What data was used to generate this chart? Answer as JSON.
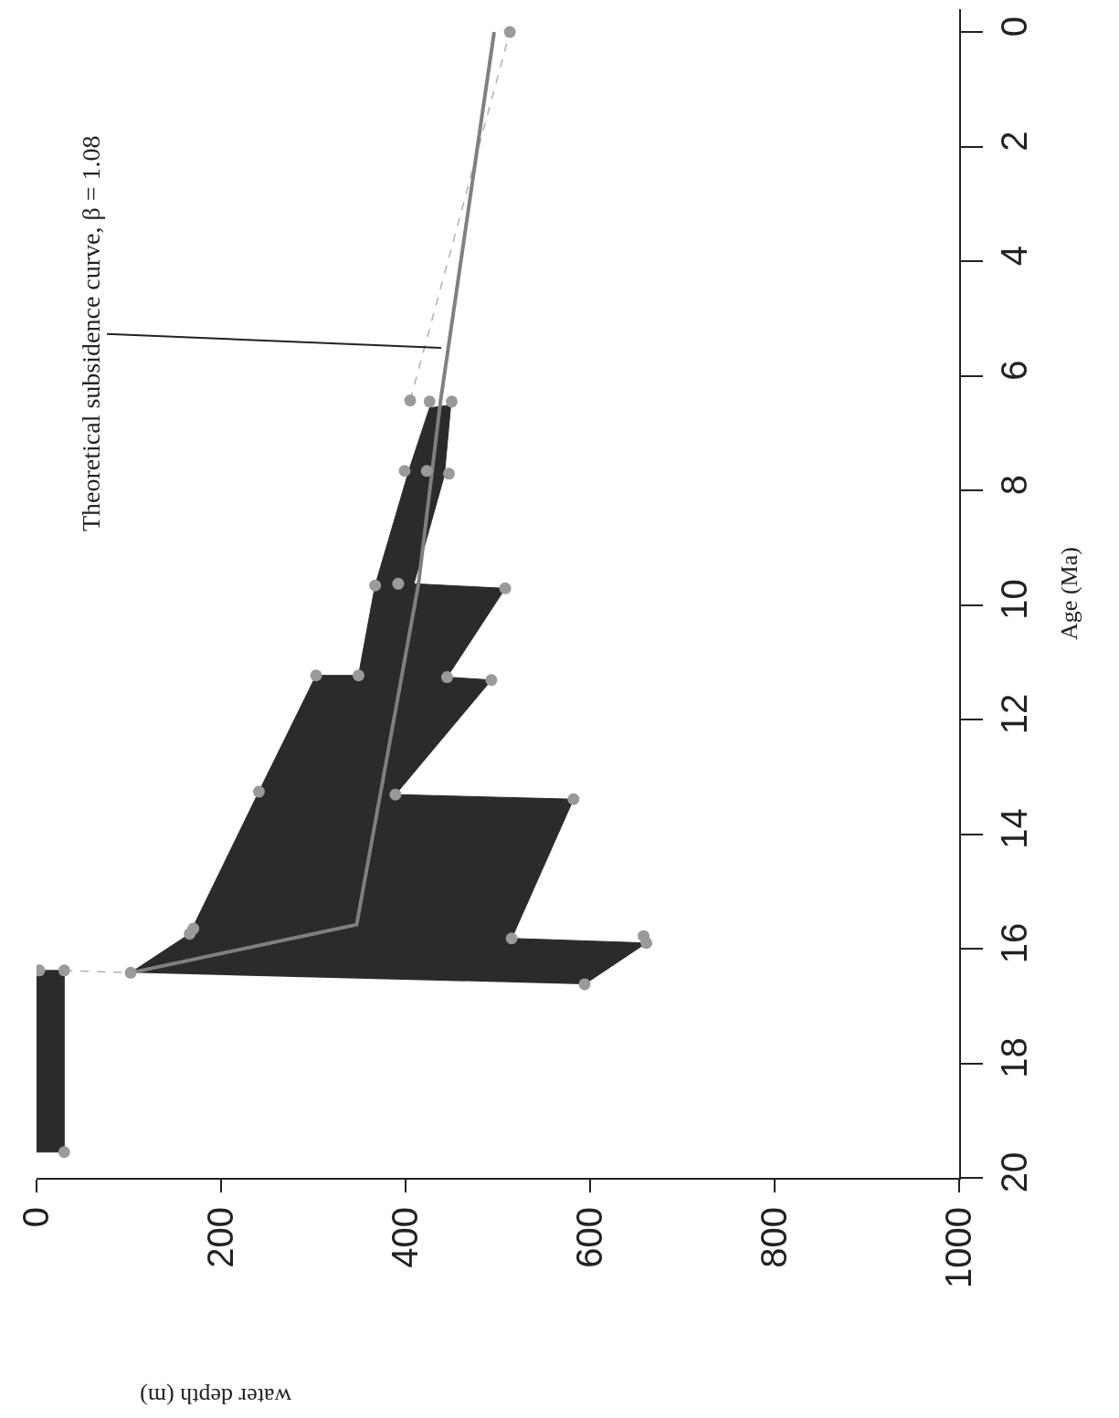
{
  "chart_data": {
    "type": "area",
    "xlabel": "water depth (m)",
    "ylabel": "Age (Ma)",
    "annotations": [
      "Theoretical subsidence curve, β = 1.08"
    ],
    "xlim": [
      0,
      1000
    ],
    "xticks": [
      0,
      200,
      400,
      600,
      800,
      1000
    ],
    "ylim": [
      20,
      -0.4
    ],
    "yticks": [
      0,
      2,
      4,
      6,
      8,
      10,
      12,
      14,
      16,
      18,
      20
    ],
    "series": [
      {
        "color": "#2b2b2b",
        "x": [
          102,
          166,
          241,
          303,
          349,
          367,
          404,
          426,
          449,
          442,
          409,
          508,
          445,
          493,
          389,
          582,
          515,
          661,
          594
        ],
        "values": [
          16.42,
          15.74,
          13.26,
          11.23,
          11.23,
          9.66,
          7.63,
          6.56,
          6.51,
          7.74,
          9.63,
          9.71,
          11.26,
          11.31,
          13.31,
          13.39,
          15.82,
          15.9,
          16.62
        ]
      },
      {
        "color": "#2b2b2b",
        "x": [
          0,
          30,
          30,
          0
        ],
        "values": [
          16.38,
          16.38,
          19.55,
          19.55
        ]
      },
      {
        "type": "line",
        "color": "#b0b0b0",
        "line_style": "dashed",
        "x": [
          30,
          102,
          null,
          405,
          513
        ],
        "values": [
          16.38,
          16.42,
          null,
          6.43,
          0
        ]
      },
      {
        "type": "line",
        "color": "#808080",
        "line_style": "solid",
        "x": [
          102,
          347,
          414,
          438,
          496
        ],
        "values": [
          16.42,
          15.58,
          9.63,
          6.43,
          0
        ]
      },
      {
        "type": "scatter",
        "color": "#9a9a9a",
        "marker": "circle",
        "x": [
          3,
          30,
          30,
          102,
          166,
          170,
          241,
          303,
          349,
          367,
          392,
          508,
          445,
          493,
          389,
          582,
          515,
          661,
          658,
          594,
          399,
          423,
          447,
          405,
          426,
          450,
          513
        ],
        "values": [
          16.38,
          16.38,
          19.55,
          16.42,
          15.74,
          15.65,
          13.26,
          11.23,
          11.23,
          9.66,
          9.63,
          9.71,
          11.26,
          11.31,
          13.31,
          13.39,
          15.82,
          15.9,
          15.78,
          16.62,
          7.66,
          7.66,
          7.71,
          6.43,
          6.45,
          6.45,
          0
        ]
      }
    ]
  }
}
